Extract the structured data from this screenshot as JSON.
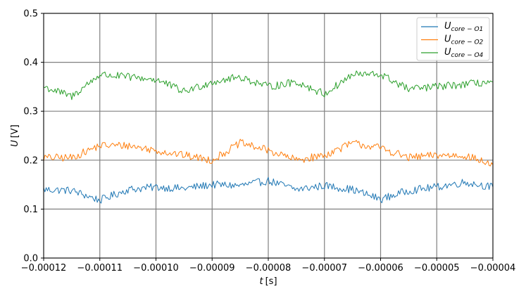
{
  "chart_data": {
    "type": "line",
    "xlabel_var": "t",
    "xlabel_unit": "[s]",
    "ylabel_var": "U",
    "ylabel_unit": "[V]",
    "xlim": [
      -0.00012,
      -4e-05
    ],
    "ylim": [
      0.0,
      0.5
    ],
    "x_ticks": [
      "-0.00012",
      "-0.00011",
      "-0.00010",
      "-0.00009",
      "-0.00008",
      "-0.00007",
      "-0.00006",
      "-0.00005",
      "-0.00004"
    ],
    "y_ticks": [
      "0.0",
      "0.1",
      "0.2",
      "0.3",
      "0.4",
      "0.5"
    ],
    "grid": true,
    "legend_position": "top-right",
    "x": [
      -0.00012,
      -0.000115,
      -0.00011,
      -0.000105,
      -0.0001,
      -9.5e-05,
      -9e-05,
      -8.5e-05,
      -8e-05,
      -7.5e-05,
      -7e-05,
      -6.5e-05,
      -6e-05,
      -5.5e-05,
      -5e-05,
      -4.5e-05,
      -4e-05
    ],
    "series": [
      {
        "name_main": "U",
        "name_sub": "core − O1",
        "color": "#1f77b4",
        "values": [
          0.14,
          0.138,
          0.118,
          0.14,
          0.145,
          0.142,
          0.15,
          0.148,
          0.158,
          0.14,
          0.148,
          0.14,
          0.12,
          0.138,
          0.145,
          0.155,
          0.145
        ]
      },
      {
        "name_main": "U",
        "name_sub": "core − O2",
        "color": "#ff7f0e",
        "values": [
          0.205,
          0.205,
          0.23,
          0.23,
          0.22,
          0.21,
          0.2,
          0.235,
          0.22,
          0.2,
          0.21,
          0.235,
          0.225,
          0.205,
          0.21,
          0.21,
          0.19
        ]
      },
      {
        "name_main": "U",
        "name_sub": "core − O4",
        "color": "#2ca02c",
        "values": [
          0.35,
          0.33,
          0.375,
          0.37,
          0.365,
          0.34,
          0.36,
          0.37,
          0.35,
          0.36,
          0.335,
          0.375,
          0.375,
          0.345,
          0.35,
          0.355,
          0.36
        ]
      }
    ]
  }
}
